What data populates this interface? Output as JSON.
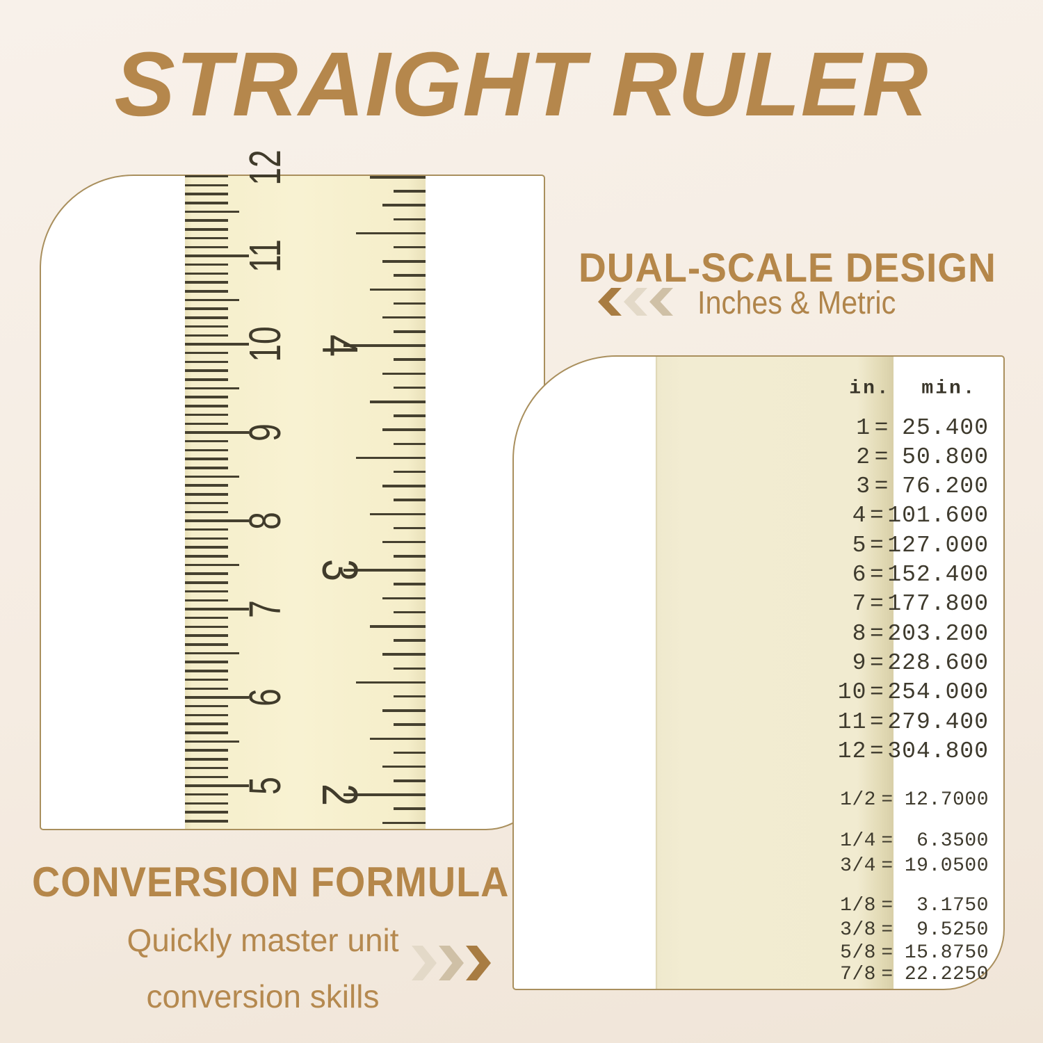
{
  "title": "STRAIGHT RULER",
  "dual_scale": {
    "heading": "DUAL-SCALE DESIGN",
    "subheading": "Inches & Metric"
  },
  "conversion_formula": {
    "heading": "CONVERSION FORMULA",
    "subtitle_line1": "Quickly master unit",
    "subtitle_line2": "conversion skills"
  },
  "ruler_photo": {
    "cm_labels": [
      "12",
      "11",
      "10",
      "9",
      "8",
      "7",
      "6",
      "5"
    ],
    "inch_labels": [
      "4",
      "3",
      "2"
    ]
  },
  "conversion_table": {
    "header": {
      "in": "in.",
      "mm": "min."
    },
    "equals": "=",
    "integer_rows": [
      {
        "in": "1",
        "mm": "25.400"
      },
      {
        "in": "2",
        "mm": "50.800"
      },
      {
        "in": "3",
        "mm": "76.200"
      },
      {
        "in": "4",
        "mm": "101.600"
      },
      {
        "in": "5",
        "mm": "127.000"
      },
      {
        "in": "6",
        "mm": "152.400"
      },
      {
        "in": "7",
        "mm": "177.800"
      },
      {
        "in": "8",
        "mm": "203.200"
      },
      {
        "in": "9",
        "mm": "228.600"
      },
      {
        "in": "10",
        "mm": "254.000"
      },
      {
        "in": "11",
        "mm": "279.400"
      },
      {
        "in": "12",
        "mm": "304.800"
      }
    ],
    "fraction_groups": [
      [
        {
          "in": "1/2",
          "mm": "12.7000"
        }
      ],
      [
        {
          "in": "1/4",
          "mm": "6.3500"
        },
        {
          "in": "3/4",
          "mm": "19.0500"
        }
      ],
      [
        {
          "in": "1/8",
          "mm": "3.1750"
        },
        {
          "in": "3/8",
          "mm": "9.5250"
        },
        {
          "in": "5/8",
          "mm": "15.8750"
        },
        {
          "in": "7/8",
          "mm": "22.2250"
        }
      ]
    ]
  },
  "colors": {
    "accent_gold": "#b5874c",
    "card_border": "#a98f5d",
    "ruler_cream": "#f5eecb",
    "table_cream": "#f1ebd0",
    "ink": "#3e3a2d",
    "chevron_dark": "#a87c42",
    "chevron_mid": "#cfc0a6",
    "chevron_light": "#e3d9c8"
  }
}
